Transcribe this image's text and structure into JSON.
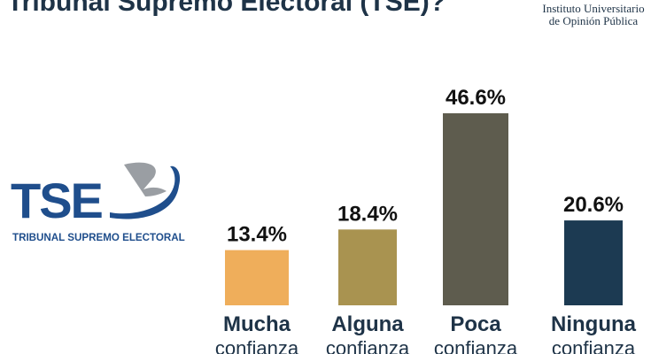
{
  "header": {
    "title": "Tribunal Supremo Electoral (TSE)?",
    "institution_line1": "Instituto Universitario",
    "institution_line2": "de Opinión Pública"
  },
  "logo": {
    "letters": "TSE",
    "caption": "TRIBUNAL SUPREMO ELECTORAL",
    "colors": {
      "blue": "#1f4e8c",
      "gray": "#9a9ea3"
    }
  },
  "chart_data": {
    "type": "bar",
    "categories": [
      "Mucha confianza",
      "Alguna confianza",
      "Poca confianza",
      "Ninguna confianza"
    ],
    "category_lines": [
      [
        "Mucha",
        "confianza"
      ],
      [
        "Alguna",
        "confianza"
      ],
      [
        "Poca",
        "confianza"
      ],
      [
        "Ninguna",
        "confianza"
      ]
    ],
    "values": [
      13.4,
      18.4,
      46.6,
      20.6
    ],
    "value_labels": [
      "13.4%",
      "18.4%",
      "46.6%",
      "20.6%"
    ],
    "colors": [
      "#efae5b",
      "#a99350",
      "#5e5c4e",
      "#1c3a52"
    ],
    "title": "Tribunal Supremo Electoral (TSE)?",
    "ylim": [
      0,
      50
    ],
    "grid": false,
    "legend": "none"
  }
}
